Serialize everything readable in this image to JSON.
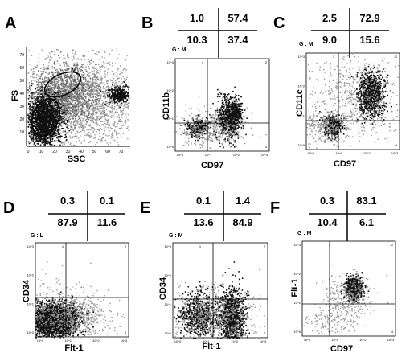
{
  "figure": {
    "panels": [
      "A",
      "B",
      "C",
      "D",
      "E",
      "F"
    ]
  },
  "chart_data": [
    {
      "panel": "A",
      "type": "scatter",
      "xlabel": "SSC",
      "ylabel": "FS",
      "gate_region": "M",
      "x_ticks": [
        "0",
        "10",
        "20",
        "30",
        "40",
        "50",
        "60",
        "70"
      ],
      "y_ticks": [
        "10",
        "20",
        "30",
        "40",
        "50",
        "60",
        "70"
      ]
    },
    {
      "panel": "B",
      "type": "scatter",
      "gate": "G : M",
      "xlabel": "CD97",
      "ylabel": "CD11b",
      "quadrants": {
        "upper_left": 1.0,
        "upper_right": 57.4,
        "lower_left": 10.3,
        "lower_right": 37.4
      },
      "quadrants_text": {
        "ul": "1.0",
        "ur": "57.4",
        "ll": "10.3",
        "lr": "37.4"
      },
      "x_ticks": [
        "10^0",
        "10^1",
        "10^2",
        "10^3"
      ],
      "y_ticks": [
        "10^0",
        "10^1",
        "10^2",
        "10^3"
      ]
    },
    {
      "panel": "C",
      "type": "scatter",
      "gate": "G : M",
      "xlabel": "CD97",
      "ylabel": "CD11c",
      "quadrants": {
        "upper_left": 2.5,
        "upper_right": 72.9,
        "lower_left": 9.0,
        "lower_right": 15.6
      },
      "quadrants_text": {
        "ul": "2.5",
        "ur": "72.9",
        "ll": "9.0",
        "lr": "15.6"
      },
      "x_ticks": [
        "10^0",
        "10^1",
        "10^2",
        "10^3"
      ],
      "y_ticks": [
        "10^0",
        "10^1",
        "10^2",
        "10^3"
      ]
    },
    {
      "panel": "D",
      "type": "scatter",
      "gate": "G : L",
      "xlabel": "Flt-1",
      "ylabel": "CD34",
      "quadrants": {
        "upper_left": 0.3,
        "upper_right": 0.1,
        "lower_left": 87.9,
        "lower_right": 11.6
      },
      "quadrants_text": {
        "ul": "0.3",
        "ur": "0.1",
        "ll": "87.9",
        "lr": "11.6"
      },
      "x_ticks": [
        "10^0",
        "10^1",
        "10^2",
        "10^3"
      ],
      "y_ticks": [
        "10^0",
        "10^1",
        "10^2",
        "10^3"
      ]
    },
    {
      "panel": "E",
      "type": "scatter",
      "gate": "G : M",
      "xlabel": "Flt-1",
      "ylabel": "CD34",
      "quadrants": {
        "upper_left": 0.1,
        "upper_right": 1.4,
        "lower_left": 13.6,
        "lower_right": 84.9
      },
      "quadrants_text": {
        "ul": "0.1",
        "ur": "1.4",
        "ll": "13.6",
        "lr": "84.9"
      },
      "x_ticks": [
        "10^0",
        "10^1",
        "10^2",
        "10^3"
      ],
      "y_ticks": [
        "10^0",
        "10^1",
        "10^2",
        "10^3"
      ]
    },
    {
      "panel": "F",
      "type": "scatter",
      "gate": "G : M",
      "xlabel": "CD97",
      "ylabel": "Flt-1",
      "quadrants": {
        "upper_left": 0.3,
        "upper_right": 83.1,
        "lower_left": 10.4,
        "lower_right": 6.1
      },
      "quadrants_text": {
        "ul": "0.3",
        "ur": "83.1",
        "ll": "10.4",
        "lr": "6.1"
      },
      "x_ticks": [
        "10^0",
        "10^1",
        "10^2",
        "10^3"
      ],
      "y_ticks": [
        "10^0",
        "10^1",
        "10^2",
        "10^3"
      ]
    }
  ],
  "colors": {
    "ink": "#000000",
    "light_dots": "#9a9a9a",
    "dark_dots": "#111111",
    "background": "#ffffff"
  }
}
